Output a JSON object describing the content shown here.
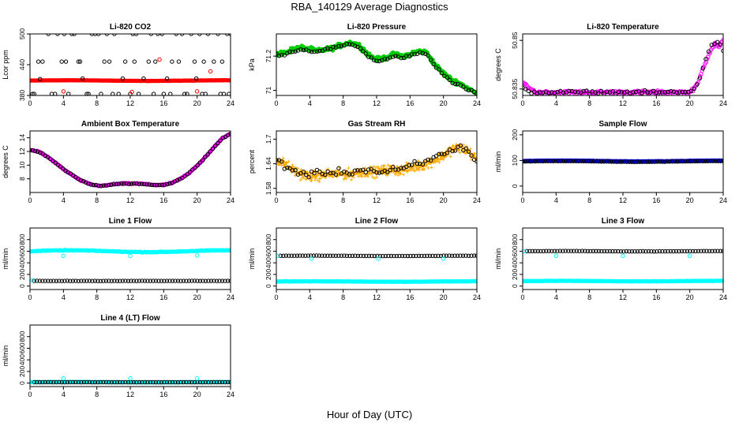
{
  "figure": {
    "title": "RBA_140129  Average Diagnostics",
    "xlabel": "Hour of Day (UTC)"
  },
  "chart_data": [
    {
      "type": "scatter",
      "title": "Li-820 CO2",
      "ylabel": "Lcor ppm",
      "xlabel": "",
      "xlim": [
        0,
        24
      ],
      "ylim": [
        380,
        500
      ],
      "xticks": [
        0,
        4,
        8,
        12,
        16,
        20,
        24
      ],
      "yticks": [
        380,
        440,
        500
      ],
      "series": [
        {
          "color": "#ff0000",
          "marker": "filled-circle",
          "mode": "band",
          "x0": 0,
          "x1": 24,
          "base": 409,
          "amp": 0.6,
          "noise": 0.3,
          "n": 150
        },
        {
          "color": "#000000",
          "marker": "open-circle",
          "mode": "points",
          "x": [
            1.2,
            2.2,
            3.3,
            4.1,
            5.0,
            5.3,
            6.3,
            7.4,
            7.8,
            8.2,
            9.2,
            10.1,
            11.1,
            12.3,
            12.7,
            13.6,
            14.5,
            15.3,
            15.8,
            16.4,
            17.5,
            18.2,
            19.3,
            19.9,
            20.3,
            21.3,
            22.5,
            23.6,
            24.0,
            0.5,
            1.5,
            3.0,
            4.3,
            5.8,
            7.0,
            8.9,
            9.9,
            11.4,
            13.0,
            14.2,
            16.0,
            17.0,
            18.5,
            19.7,
            21.0,
            22.0,
            23.2,
            0.3,
            2.6,
            4.6,
            6.8,
            8.5,
            10.6,
            12.0,
            14.8,
            16.8,
            18.8,
            20.6,
            22.8,
            23.8,
            1.0,
            3.8,
            6.0,
            9.5,
            12.5,
            15.0,
            17.8,
            20.8,
            23.0
          ],
          "y": [
            412,
            500,
            500,
            500,
            500,
            500,
            413,
            500,
            500,
            500,
            500,
            500,
            413,
            500,
            500,
            413,
            500,
            500,
            500,
            413,
            500,
            500,
            500,
            413,
            500,
            500,
            500,
            500,
            500,
            383,
            446,
            383,
            446,
            446,
            383,
            446,
            383,
            446,
            383,
            446,
            383,
            446,
            383,
            446,
            383,
            446,
            383,
            383,
            383,
            383,
            383,
            383,
            383,
            383,
            383,
            383,
            383,
            383,
            383,
            383,
            446,
            446,
            446,
            446,
            446,
            446,
            446,
            446,
            446
          ]
        },
        {
          "color": "#ff0000",
          "marker": "open-circle",
          "mode": "points",
          "x": [
            4.0,
            12.2,
            15.5,
            20.0,
            21.6
          ],
          "y": [
            388,
            387,
            450,
            388,
            427
          ]
        }
      ]
    },
    {
      "type": "scatter",
      "title": "Li-820 Pressure",
      "ylabel": "kPa",
      "xlabel": "",
      "xlim": [
        0,
        24
      ],
      "ylim": [
        70.97,
        71.33
      ],
      "xticks": [
        0,
        4,
        8,
        12,
        16,
        20,
        24
      ],
      "yticks": [
        71.0,
        71.2
      ],
      "series": [
        {
          "color": "#00cc00",
          "marker": "filled-circle",
          "mode": "curve",
          "jitter": 0.018,
          "n": 260,
          "x": [
            0,
            1,
            2,
            3,
            4,
            5,
            6,
            7,
            8,
            9,
            10,
            11,
            12,
            13,
            14,
            15,
            16,
            17,
            18,
            19,
            20,
            21,
            22,
            23,
            24
          ],
          "y": [
            71.21,
            71.22,
            71.24,
            71.25,
            71.24,
            71.23,
            71.24,
            71.25,
            71.27,
            71.28,
            71.26,
            71.21,
            71.18,
            71.19,
            71.21,
            71.2,
            71.21,
            71.23,
            71.22,
            71.15,
            71.1,
            71.06,
            71.04,
            71.01,
            70.98
          ]
        },
        {
          "color": "#000000",
          "marker": "open-circle",
          "mode": "curve",
          "jitter": 0.01,
          "n": 75,
          "x": [
            0,
            1,
            2,
            3,
            4,
            5,
            6,
            7,
            8,
            9,
            10,
            11,
            12,
            13,
            14,
            15,
            16,
            17,
            18,
            19,
            20,
            21,
            22,
            23,
            24
          ],
          "y": [
            71.21,
            71.21,
            71.23,
            71.24,
            71.23,
            71.23,
            71.24,
            71.25,
            71.26,
            71.27,
            71.25,
            71.2,
            71.17,
            71.18,
            71.2,
            71.19,
            71.2,
            71.22,
            71.21,
            71.14,
            71.09,
            71.05,
            71.03,
            71.0,
            70.98
          ]
        }
      ]
    },
    {
      "type": "scatter",
      "title": "Li-820 Temperature",
      "ylabel": "degrees C",
      "xlabel": "",
      "xlim": [
        0,
        24
      ],
      "ylim": [
        50.833,
        50.852
      ],
      "xticks": [
        0,
        4,
        8,
        12,
        16,
        20,
        24
      ],
      "yticks": [
        50.835,
        50.85
      ],
      "series": [
        {
          "color": "#ff00ff",
          "marker": "open-circle",
          "mode": "curve",
          "jitter": 0.0007,
          "n": 200,
          "x": [
            0,
            0.5,
            1,
            1.5,
            2,
            4,
            8,
            12,
            16,
            20,
            20.5,
            21,
            21.5,
            22,
            22.5,
            23,
            23.5,
            24
          ],
          "y": [
            50.837,
            50.836,
            50.835,
            50.834,
            50.834,
            50.834,
            50.834,
            50.834,
            50.834,
            50.834,
            50.835,
            50.837,
            50.841,
            50.844,
            50.847,
            50.849,
            50.848,
            50.85
          ]
        },
        {
          "color": "#000000",
          "marker": "open-circle",
          "mode": "curve",
          "jitter": 0.0007,
          "n": 70,
          "x": [
            0,
            1,
            2,
            4,
            8,
            12,
            16,
            20,
            20.5,
            21,
            21.5,
            22,
            22.5,
            23,
            23.5,
            24
          ],
          "y": [
            50.835,
            50.834,
            50.834,
            50.834,
            50.834,
            50.834,
            50.834,
            50.834,
            50.835,
            50.837,
            50.841,
            50.845,
            50.848,
            50.849,
            50.85,
            50.847
          ]
        }
      ]
    },
    {
      "type": "scatter",
      "title": "Ambient Box Temperature",
      "ylabel": "degrees C",
      "xlabel": "",
      "xlim": [
        0,
        24
      ],
      "ylim": [
        6,
        15
      ],
      "xticks": [
        0,
        4,
        8,
        12,
        16,
        20,
        24
      ],
      "yticks": [
        8,
        10,
        12,
        14
      ],
      "series": [
        {
          "color": "#ff00ff",
          "marker": "filled-circle",
          "mode": "curve",
          "jitter": 0.1,
          "n": 220,
          "x": [
            0,
            1,
            2,
            3,
            4,
            5,
            6,
            7,
            8,
            9,
            10,
            11,
            12,
            13,
            14,
            15,
            16,
            17,
            18,
            19,
            20,
            21,
            22,
            23,
            24
          ],
          "y": [
            12.2,
            12.0,
            11.3,
            10.4,
            9.4,
            8.6,
            7.8,
            7.3,
            7.0,
            7.0,
            7.2,
            7.3,
            7.3,
            7.3,
            7.2,
            7.1,
            7.1,
            7.4,
            8.0,
            8.8,
            9.9,
            11.2,
            12.6,
            13.9,
            14.6
          ]
        },
        {
          "color": "#000000",
          "marker": "open-circle",
          "mode": "curve",
          "jitter": 0.1,
          "n": 80,
          "x": [
            0,
            1,
            2,
            3,
            4,
            5,
            6,
            7,
            8,
            9,
            10,
            11,
            12,
            13,
            14,
            15,
            16,
            17,
            18,
            19,
            20,
            21,
            22,
            23,
            24
          ],
          "y": [
            12.2,
            12.0,
            11.3,
            10.4,
            9.4,
            8.6,
            7.8,
            7.3,
            7.0,
            7.0,
            7.2,
            7.3,
            7.3,
            7.3,
            7.2,
            7.1,
            7.1,
            7.4,
            8.0,
            8.8,
            9.9,
            11.2,
            12.6,
            13.9,
            14.6
          ]
        }
      ]
    },
    {
      "type": "scatter",
      "title": "Gas Stream RH",
      "ylabel": "percent",
      "xlabel": "",
      "xlim": [
        0,
        24
      ],
      "ylim": [
        1.57,
        1.72
      ],
      "xticks": [
        0,
        4,
        8,
        12,
        16,
        20,
        24
      ],
      "yticks": [
        1.58,
        1.64,
        1.7
      ],
      "series": [
        {
          "color": "#ffaa00",
          "marker": "small-plus",
          "mode": "curve",
          "jitter": 0.018,
          "n": 520,
          "x": [
            0,
            1,
            2,
            3,
            4,
            5,
            6,
            7,
            8,
            9,
            10,
            11,
            12,
            13,
            14,
            15,
            16,
            17,
            18,
            19,
            20,
            21,
            22,
            23,
            24
          ],
          "y": [
            1.65,
            1.64,
            1.625,
            1.615,
            1.61,
            1.61,
            1.615,
            1.615,
            1.615,
            1.615,
            1.62,
            1.62,
            1.62,
            1.625,
            1.625,
            1.625,
            1.63,
            1.635,
            1.64,
            1.65,
            1.66,
            1.675,
            1.68,
            1.67,
            1.65
          ]
        },
        {
          "color": "#000000",
          "marker": "open-circle",
          "mode": "curve",
          "jitter": 0.012,
          "n": 75,
          "x": [
            0,
            1,
            2,
            3,
            4,
            5,
            6,
            7,
            8,
            9,
            10,
            11,
            12,
            13,
            14,
            15,
            16,
            17,
            18,
            19,
            20,
            21,
            22,
            23,
            24
          ],
          "y": [
            1.65,
            1.635,
            1.625,
            1.615,
            1.615,
            1.615,
            1.62,
            1.62,
            1.62,
            1.62,
            1.625,
            1.625,
            1.62,
            1.62,
            1.625,
            1.625,
            1.635,
            1.64,
            1.645,
            1.655,
            1.665,
            1.675,
            1.68,
            1.67,
            1.645
          ]
        }
      ]
    },
    {
      "type": "scatter",
      "title": "Sample Flow",
      "ylabel": "ml/min",
      "xlabel": "",
      "xlim": [
        0,
        24
      ],
      "ylim": [
        -25,
        215
      ],
      "xticks": [
        0,
        4,
        8,
        12,
        16,
        20,
        24
      ],
      "yticks": [
        0,
        100,
        200
      ],
      "series": [
        {
          "color": "#0000ff",
          "marker": "filled-circle",
          "mode": "band",
          "x0": 0,
          "x1": 24,
          "base": 98,
          "amp": 1.5,
          "noise": 0.8,
          "n": 160
        },
        {
          "color": "#000000",
          "marker": "open-circle",
          "mode": "band",
          "x0": 0,
          "x1": 24,
          "base": 96,
          "amp": 1.5,
          "noise": 0.8,
          "n": 80
        }
      ]
    },
    {
      "type": "scatter",
      "title": "Line 1 Flow",
      "ylabel": "ml/min",
      "xlabel": "",
      "xlim": [
        0,
        24
      ],
      "ylim": [
        -60,
        1000
      ],
      "xticks": [
        0,
        4,
        8,
        12,
        16,
        20,
        24
      ],
      "yticks": [
        0,
        200,
        400,
        600,
        800
      ],
      "series": [
        {
          "color": "#00ffff",
          "marker": "filled-circle",
          "mode": "band",
          "x0": 0,
          "x1": 24,
          "base": 600,
          "amp": 15,
          "noise": 8,
          "n": 180
        },
        {
          "color": "#000000",
          "marker": "open-circle",
          "mode": "band",
          "x0": 0.5,
          "x1": 24,
          "base": 88,
          "amp": 0,
          "noise": 3,
          "n": 72
        },
        {
          "color": "#00ffff",
          "marker": "open-circle",
          "mode": "points",
          "x": [
            0.3,
            4.0,
            12.0,
            20.0
          ],
          "y": [
            100,
            520,
            520,
            525
          ]
        }
      ]
    },
    {
      "type": "scatter",
      "title": "Line 2 Flow",
      "ylabel": "ml/min",
      "xlabel": "",
      "xlim": [
        0,
        24
      ],
      "ylim": [
        -60,
        1000
      ],
      "xticks": [
        0,
        4,
        8,
        12,
        16,
        20,
        24
      ],
      "yticks": [
        0,
        200,
        400,
        600,
        800
      ],
      "series": [
        {
          "color": "#00ffff",
          "marker": "filled-circle",
          "mode": "band",
          "x0": 0,
          "x1": 24,
          "base": 78,
          "amp": 4,
          "noise": 4,
          "n": 170
        },
        {
          "color": "#000000",
          "marker": "open-circle",
          "mode": "band",
          "x0": 0.5,
          "x1": 24,
          "base": 520,
          "amp": 3,
          "noise": 3,
          "n": 72
        },
        {
          "color": "#00ffff",
          "marker": "open-circle",
          "mode": "points",
          "x": [
            0.2,
            4.2,
            12.2,
            20.0
          ],
          "y": [
            520,
            470,
            470,
            470
          ]
        }
      ]
    },
    {
      "type": "scatter",
      "title": "Line 3 Flow",
      "ylabel": "ml/min",
      "xlabel": "",
      "xlim": [
        0,
        24
      ],
      "ylim": [
        -60,
        1000
      ],
      "xticks": [
        0,
        4,
        8,
        12,
        16,
        20,
        24
      ],
      "yticks": [
        0,
        200,
        400,
        600,
        800
      ],
      "series": [
        {
          "color": "#00ffff",
          "marker": "filled-circle",
          "mode": "band",
          "x0": 0,
          "x1": 24,
          "base": 85,
          "amp": 4,
          "noise": 4,
          "n": 170
        },
        {
          "color": "#000000",
          "marker": "open-circle",
          "mode": "band",
          "x0": 0.5,
          "x1": 24,
          "base": 600,
          "amp": 3,
          "noise": 3,
          "n": 72
        },
        {
          "color": "#00ffff",
          "marker": "open-circle",
          "mode": "points",
          "x": [
            0.2,
            4.0,
            12.0,
            20.0
          ],
          "y": [
            600,
            520,
            520,
            520
          ]
        }
      ]
    },
    {
      "type": "scatter",
      "title": "Line 4 (LT) Flow",
      "ylabel": "ml/min",
      "xlabel": "",
      "xlim": [
        0,
        24
      ],
      "ylim": [
        -60,
        1000
      ],
      "xticks": [
        0,
        4,
        8,
        12,
        16,
        20,
        24
      ],
      "yticks": [
        0,
        200,
        400,
        600,
        800
      ],
      "series": [
        {
          "color": "#00ffff",
          "marker": "filled-circle",
          "mode": "band",
          "x0": 0,
          "x1": 24,
          "base": 15,
          "amp": 2,
          "noise": 3,
          "n": 160
        },
        {
          "color": "#000000",
          "marker": "open-circle",
          "mode": "band",
          "x0": 0.5,
          "x1": 24,
          "base": 15,
          "amp": 0,
          "noise": 2,
          "n": 72
        },
        {
          "color": "#00ffff",
          "marker": "open-circle",
          "mode": "points",
          "x": [
            0.2,
            4.0,
            12.0,
            20.0
          ],
          "y": [
            15,
            80,
            80,
            80
          ]
        }
      ]
    }
  ]
}
